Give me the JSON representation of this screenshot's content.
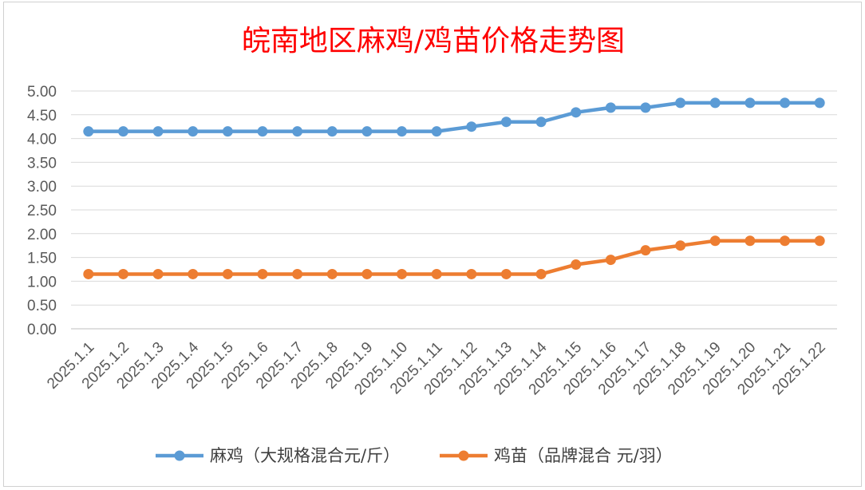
{
  "chart_data": {
    "type": "line",
    "title": "皖南地区麻鸡/鸡苗价格走势图",
    "xlabel": "",
    "ylabel": "",
    "ylim": [
      0,
      5
    ],
    "yticks": [
      "0.00",
      "0.50",
      "1.00",
      "1.50",
      "2.00",
      "2.50",
      "3.00",
      "3.50",
      "4.00",
      "4.50",
      "5.00"
    ],
    "grid": true,
    "legend_position": "bottom",
    "categories": [
      "2025.1.1",
      "2025.1.2",
      "2025.1.3",
      "2025.1.4",
      "2025.1.5",
      "2025.1.6",
      "2025.1.7",
      "2025.1.8",
      "2025.1.9",
      "2025.1.10",
      "2025.1.11",
      "2025.1.12",
      "2025.1.13",
      "2025.1.14",
      "2025.1.15",
      "2025.1.16",
      "2025.1.17",
      "2025.1.18",
      "2025.1.19",
      "2025.1.20",
      "2025.1.21",
      "2025.1.22"
    ],
    "series": [
      {
        "name": "麻鸡（大规格混合元/斤）",
        "color": "#5b9bd5",
        "values": [
          4.15,
          4.15,
          4.15,
          4.15,
          4.15,
          4.15,
          4.15,
          4.15,
          4.15,
          4.15,
          4.15,
          4.25,
          4.35,
          4.35,
          4.55,
          4.65,
          4.65,
          4.75,
          4.75,
          4.75,
          4.75,
          4.75
        ]
      },
      {
        "name": "鸡苗（品牌混合 元/羽）",
        "color": "#ed7d31",
        "values": [
          1.15,
          1.15,
          1.15,
          1.15,
          1.15,
          1.15,
          1.15,
          1.15,
          1.15,
          1.15,
          1.15,
          1.15,
          1.15,
          1.15,
          1.35,
          1.45,
          1.65,
          1.75,
          1.85,
          1.85,
          1.85,
          1.85
        ]
      }
    ],
    "title_color": "#ff0000"
  }
}
